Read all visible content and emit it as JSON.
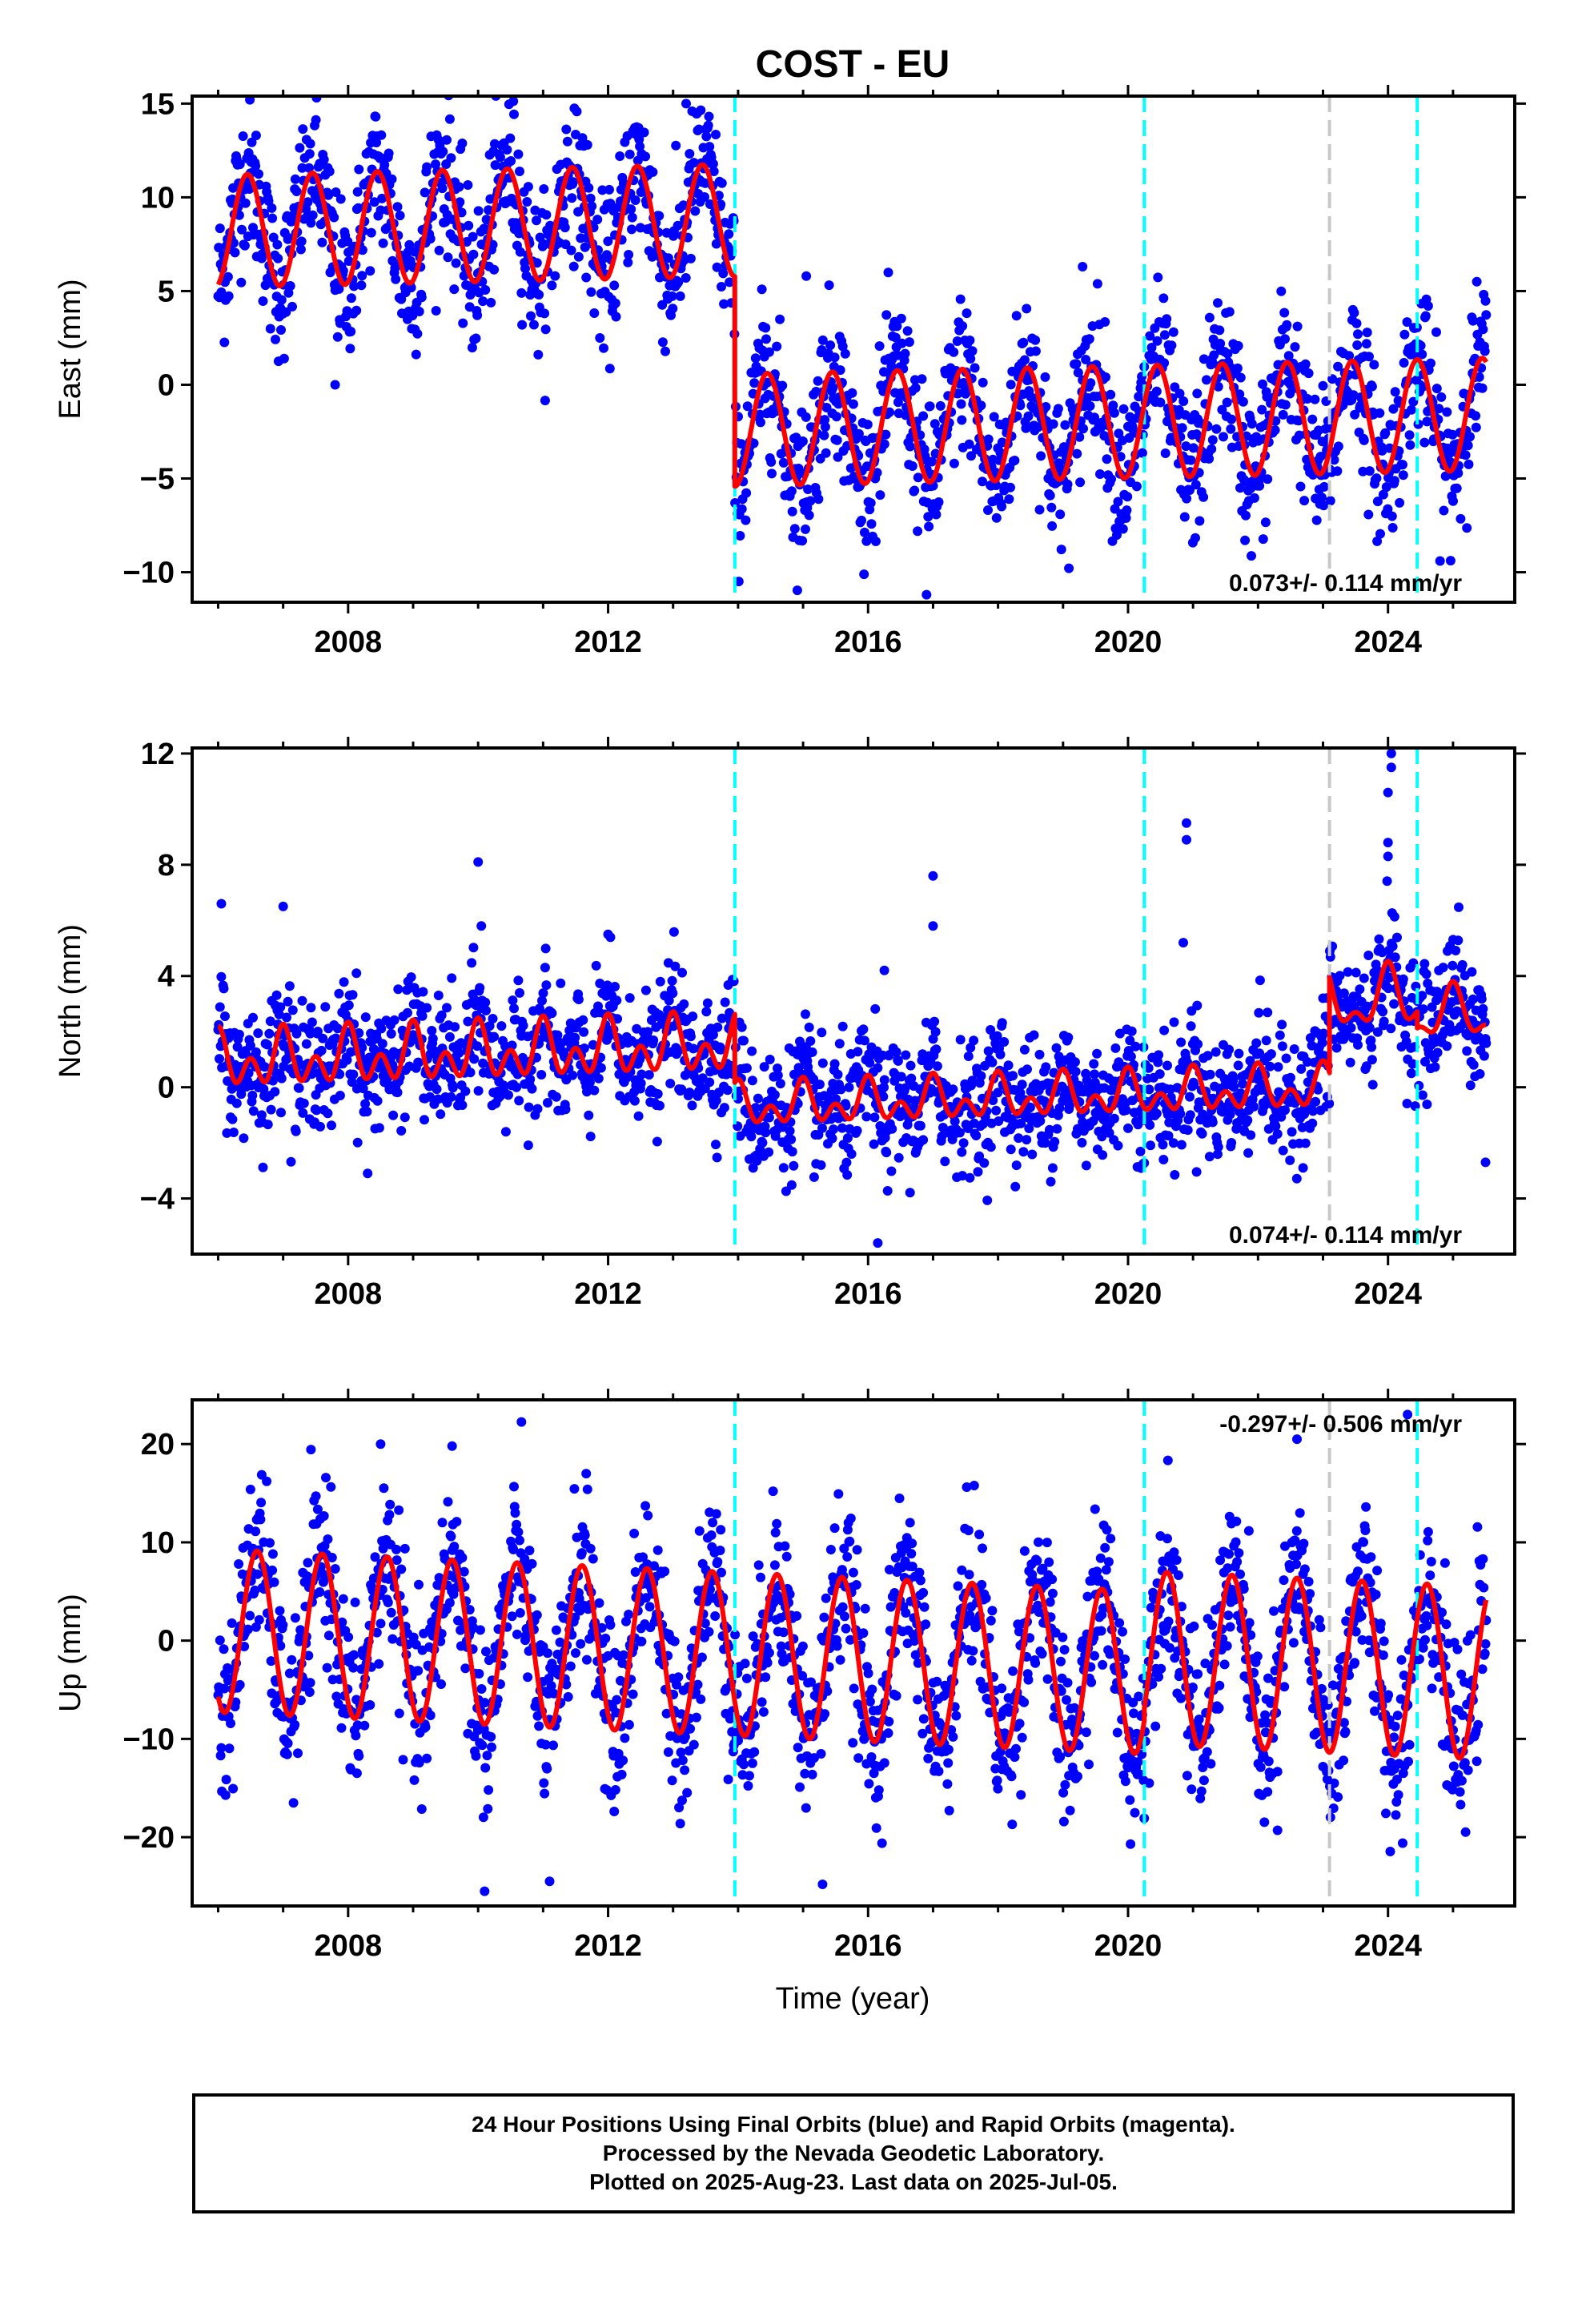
{
  "title": "COST - EU",
  "xlabel": "Time (year)",
  "caption": {
    "line1": "24 Hour Positions Using Final Orbits (blue) and Rapid Orbits (magenta).",
    "line2": "Processed by the Nevada Geodetic Laboratory.",
    "line3": "Plotted on 2025-Aug-23. Last data on 2025-Jul-05."
  },
  "colors": {
    "points": "#0000ff",
    "model": "#ff0000",
    "equipment_change": "#00ffff",
    "earthquake": "#c8c8c8",
    "frame": "#000000"
  },
  "chart_data": [
    {
      "type": "scatter",
      "ylabel": "East (mm)",
      "xlim": [
        2005.6,
        2025.95
      ],
      "ylim": [
        -11.6,
        15.4
      ],
      "yticks": [
        -10,
        -5,
        0,
        5,
        10,
        15
      ],
      "xticks": [
        2008,
        2012,
        2016,
        2020,
        2024
      ],
      "rate_label": "0.073+/- 0.114 mm/yr",
      "rate_position": "bottom-right",
      "data_range": [
        2006.0,
        2025.51
      ],
      "model": {
        "segments": [
          {
            "x0": 2006.0,
            "x1": 2013.95,
            "base": 8.2,
            "annual_amp": 3.0,
            "peak": 2006.45,
            "semi_amp": 0.0
          },
          {
            "x0": 2013.95,
            "x1": 2025.51,
            "base": -3.0,
            "annual_amp": 3.0,
            "peak": 2014.45,
            "semi_amp": 0.0
          }
        ],
        "trend_per_year": 0.073,
        "ref_year": 2006.0
      },
      "scatter": 2.0,
      "outliers": [
        [
          2007.8,
          0.0
        ],
        [
          2013.2,
          15.0
        ],
        [
          2015.05,
          5.8
        ],
        [
          2016.9,
          -11.2
        ],
        [
          2019.3,
          6.3
        ],
        [
          2021.8,
          -8.3
        ]
      ],
      "vlines": [
        {
          "x": 2013.95,
          "kind": "equipment_change"
        },
        {
          "x": 2020.25,
          "kind": "equipment_change"
        },
        {
          "x": 2023.1,
          "kind": "earthquake"
        },
        {
          "x": 2024.45,
          "kind": "equipment_change"
        }
      ]
    },
    {
      "type": "scatter",
      "ylabel": "North (mm)",
      "xlim": [
        2005.6,
        2025.95
      ],
      "ylim": [
        -6.0,
        12.2
      ],
      "yticks": [
        -4,
        0,
        4,
        8,
        12
      ],
      "xticks": [
        2008,
        2012,
        2016,
        2020,
        2024
      ],
      "rate_label": "0.074+/- 0.114 mm/yr",
      "rate_position": "bottom-right",
      "data_range": [
        2006.0,
        2025.51
      ],
      "model": {
        "segments": [
          {
            "x0": 2006.0,
            "x1": 2013.95,
            "base": 0.9,
            "annual_amp": 0.6,
            "peak": 2006.0,
            "semi_amp": 0.7
          },
          {
            "x0": 2013.95,
            "x1": 2023.1,
            "base": -1.3,
            "annual_amp": 0.5,
            "peak": 2014.0,
            "semi_amp": 0.5
          },
          {
            "x0": 2023.1,
            "x1": 2024.45,
            "base": 1.8,
            "annual_amp": 0.9,
            "peak": 2024.0,
            "semi_amp": 0.5
          },
          {
            "x0": 2024.45,
            "x1": 2025.51,
            "base": 1.2,
            "annual_amp": 0.8,
            "peak": 2025.0,
            "semi_amp": 0.4
          }
        ],
        "trend_per_year": 0.074,
        "ref_year": 2006.0
      },
      "scatter": 1.1,
      "outliers": [
        [
          2006.05,
          6.6
        ],
        [
          2007.0,
          6.5
        ],
        [
          2008.3,
          -3.1
        ],
        [
          2010.0,
          8.1
        ],
        [
          2010.05,
          5.8
        ],
        [
          2012.0,
          5.5
        ],
        [
          2016.15,
          -5.6
        ],
        [
          2017.0,
          7.6
        ],
        [
          2017.0,
          5.8
        ],
        [
          2016.25,
          4.2
        ],
        [
          2020.9,
          9.5
        ],
        [
          2020.9,
          8.9
        ],
        [
          2020.85,
          5.2
        ],
        [
          2023.0,
          3.2
        ],
        [
          2024.05,
          12.0
        ],
        [
          2024.05,
          11.5
        ],
        [
          2024.0,
          10.6
        ],
        [
          2024.0,
          8.8
        ],
        [
          2024.0,
          8.3
        ],
        [
          2025.5,
          -2.7
        ]
      ],
      "vlines": [
        {
          "x": 2013.95,
          "kind": "equipment_change"
        },
        {
          "x": 2020.25,
          "kind": "equipment_change"
        },
        {
          "x": 2023.1,
          "kind": "earthquake"
        },
        {
          "x": 2024.45,
          "kind": "equipment_change"
        }
      ]
    },
    {
      "type": "scatter",
      "ylabel": "Up (mm)",
      "xlim": [
        2005.6,
        2025.95
      ],
      "ylim": [
        -27.0,
        24.5
      ],
      "yticks": [
        -20,
        -10,
        0,
        10,
        20
      ],
      "xticks": [
        2008,
        2012,
        2016,
        2020,
        2024
      ],
      "rate_label": "-0.297+/- 0.506 mm/yr",
      "rate_position": "top-right",
      "data_range": [
        2006.0,
        2025.51
      ],
      "model": {
        "segments": [
          {
            "x0": 2006.0,
            "x1": 2020.25,
            "base": 1.0,
            "annual_amp": 8.3,
            "peak": 2006.6,
            "semi_amp": 0.0
          },
          {
            "x0": 2020.25,
            "x1": 2025.51,
            "base": 2.5,
            "annual_amp": 8.8,
            "peak": 2020.6,
            "semi_amp": 0.0
          }
        ],
        "trend_per_year": -0.297,
        "ref_year": 2006.0
      },
      "scatter": 4.2,
      "outliers": [
        [
          2010.1,
          -25.5
        ],
        [
          2011.1,
          -24.5
        ],
        [
          2015.3,
          -24.8
        ],
        [
          2008.5,
          20.0
        ],
        [
          2009.6,
          19.8
        ],
        [
          2022.6,
          20.5
        ],
        [
          2024.3,
          23.0
        ],
        [
          2022.3,
          -19.3
        ]
      ],
      "vlines": [
        {
          "x": 2013.95,
          "kind": "equipment_change"
        },
        {
          "x": 2020.25,
          "kind": "equipment_change"
        },
        {
          "x": 2023.1,
          "kind": "earthquake"
        },
        {
          "x": 2024.45,
          "kind": "equipment_change"
        }
      ]
    }
  ]
}
